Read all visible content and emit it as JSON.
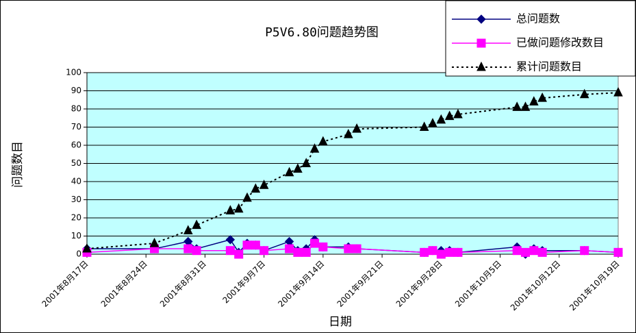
{
  "chart_data": {
    "type": "line",
    "title": "P5V6.80问题趋势图",
    "xlabel": "日期",
    "ylabel": "问题数目",
    "x": [
      "2001-08-17",
      "2001-08-25",
      "2001-08-29",
      "2001-08-30",
      "2001-09-03",
      "2001-09-04",
      "2001-09-05",
      "2001-09-06",
      "2001-09-07",
      "2001-09-10",
      "2001-09-11",
      "2001-09-12",
      "2001-09-13",
      "2001-09-14",
      "2001-09-17",
      "2001-09-18",
      "2001-09-26",
      "2001-09-27",
      "2001-09-28",
      "2001-09-29",
      "2001-09-30",
      "2001-10-07",
      "2001-10-08",
      "2001-10-09",
      "2001-10-10",
      "2001-10-15",
      "2001-10-19"
    ],
    "series": [
      {
        "name": "总问题数",
        "color": "#000080",
        "marker": "diamond",
        "dashed": false,
        "values": [
          3,
          3,
          7,
          3,
          8,
          1,
          6,
          5,
          2,
          7,
          2,
          3,
          8,
          4,
          4,
          3,
          1,
          2,
          2,
          2,
          1,
          4,
          0,
          3,
          2,
          2,
          1
        ]
      },
      {
        "name": "已做问题修改数目",
        "color": "#ff00ff",
        "marker": "square",
        "dashed": false,
        "values": [
          1,
          3,
          3,
          2,
          2,
          0,
          5,
          5,
          2,
          3,
          1,
          1,
          6,
          4,
          3,
          3,
          1,
          2,
          0,
          1,
          1,
          2,
          1,
          2,
          1,
          2,
          1
        ]
      },
      {
        "name": "累计问题数目",
        "color": "#000000",
        "marker": "triangle",
        "dashed": true,
        "values": [
          3,
          6,
          13,
          16,
          24,
          25,
          31,
          36,
          38,
          45,
          47,
          50,
          58,
          62,
          66,
          69,
          70,
          72,
          74,
          76,
          77,
          81,
          81,
          84,
          86,
          88,
          89
        ]
      }
    ],
    "xlim": [
      "2001-08-17",
      "2001-10-19"
    ],
    "xticks": [
      {
        "value": "2001-08-17",
        "label": "2001年8月17日"
      },
      {
        "value": "2001-08-24",
        "label": "2001年8月24日"
      },
      {
        "value": "2001-08-31",
        "label": "2001年8月31日"
      },
      {
        "value": "2001-09-07",
        "label": "2001年9月7日"
      },
      {
        "value": "2001-09-14",
        "label": "2001年9月14日"
      },
      {
        "value": "2001-09-21",
        "label": "2001年9月21日"
      },
      {
        "value": "2001-09-28",
        "label": "2001年9月28日"
      },
      {
        "value": "2001-10-05",
        "label": "2001年10月5日"
      },
      {
        "value": "2001-10-12",
        "label": "2001年10月12日"
      },
      {
        "value": "2001-10-19",
        "label": "2001年10月19日"
      }
    ],
    "ylim": [
      0,
      100
    ],
    "yticks": [
      0,
      10,
      20,
      30,
      40,
      50,
      60,
      70,
      80,
      90,
      100
    ],
    "grid": true,
    "plot_background": "#c0ffff",
    "legend": "upper right"
  }
}
